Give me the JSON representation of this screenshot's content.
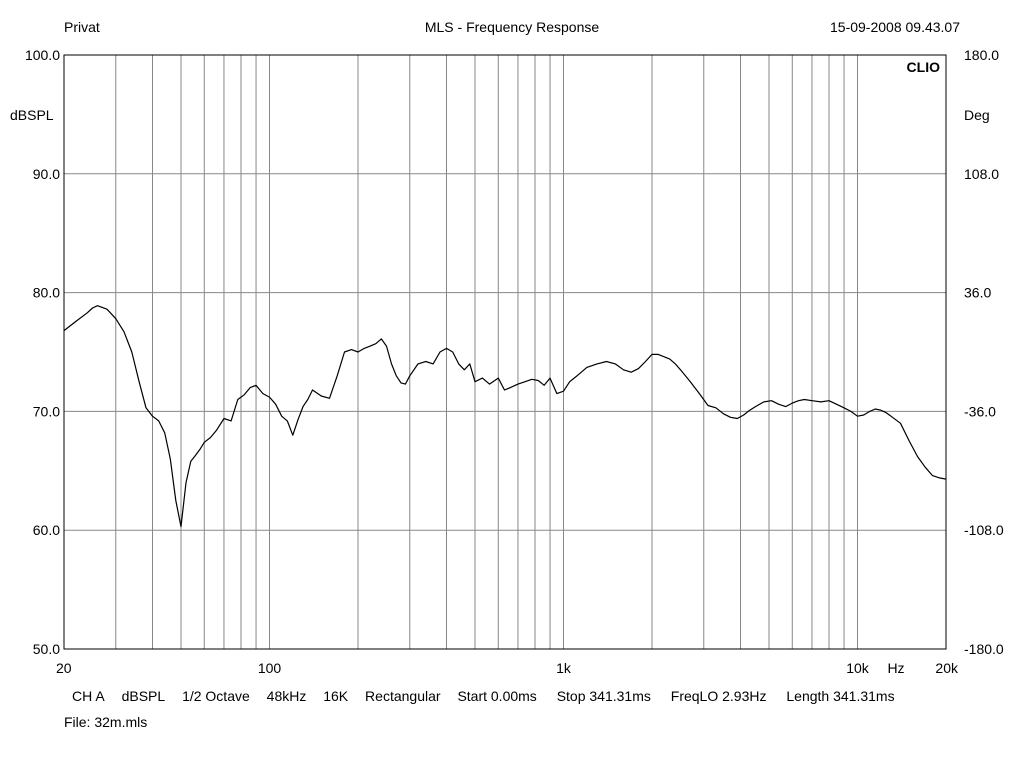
{
  "header": {
    "left": "Privat",
    "center": "MLS - Frequency Response",
    "right": "15-09-2008 09.43.07"
  },
  "footer": {
    "params": [
      "CH A",
      "dBSPL",
      "1/2 Octave",
      "48kHz",
      "16K",
      "Rectangular",
      "Start 0.00ms",
      "Stop 341.31ms",
      "FreqLO 2.93Hz",
      "Length 341.31ms"
    ],
    "file": "File: 32m.mls"
  },
  "chart_data": {
    "type": "line",
    "brand": "CLIO",
    "xscale": "log",
    "xlim": [
      20,
      20000
    ],
    "ylim": [
      50,
      100
    ],
    "y2lim": [
      -180,
      180
    ],
    "ylabel": "dBSPL",
    "y2label": "Deg",
    "xunit": "Hz",
    "grid": true,
    "line_color": "#000000",
    "grid_color": "#888888",
    "x_ticks": [
      {
        "value": 20,
        "label": "20"
      },
      {
        "value": 100,
        "label": "100"
      },
      {
        "value": 1000,
        "label": "1k"
      },
      {
        "value": 10000,
        "label": "10k"
      },
      {
        "value": 20000,
        "label": "20k"
      }
    ],
    "y_ticks": [
      {
        "value": 100,
        "label": "100.0"
      },
      {
        "value": 90,
        "label": "90.0"
      },
      {
        "value": 80,
        "label": "80.0"
      },
      {
        "value": 70,
        "label": "70.0"
      },
      {
        "value": 60,
        "label": "60.0"
      },
      {
        "value": 50,
        "label": "50.0"
      }
    ],
    "y2_ticks": [
      {
        "value": 180,
        "label": "180.0"
      },
      {
        "value": 108,
        "label": "108.0"
      },
      {
        "value": 36,
        "label": "36.0"
      },
      {
        "value": -36,
        "label": "-36.0"
      },
      {
        "value": -108,
        "label": "-108.0"
      },
      {
        "value": -180,
        "label": "-180.0"
      }
    ],
    "series": [
      {
        "x": [
          20,
          22,
          24,
          25,
          26,
          28,
          30,
          32,
          34,
          36,
          38,
          40,
          42,
          44,
          46,
          48,
          50,
          52,
          54,
          56,
          58,
          60,
          63,
          66,
          70,
          74,
          78,
          82,
          86,
          90,
          95,
          100,
          105,
          110,
          115,
          120,
          125,
          130,
          135,
          140,
          150,
          160,
          170,
          180,
          190,
          200,
          210,
          220,
          230,
          240,
          250,
          260,
          270,
          280,
          290,
          300,
          320,
          340,
          360,
          380,
          400,
          420,
          440,
          460,
          480,
          500,
          530,
          560,
          600,
          630,
          660,
          700,
          740,
          780,
          820,
          860,
          900,
          950,
          1000,
          1050,
          1100,
          1150,
          1200,
          1300,
          1400,
          1500,
          1600,
          1700,
          1800,
          1900,
          2000,
          2100,
          2200,
          2300,
          2400,
          2500,
          2700,
          2900,
          3100,
          3300,
          3500,
          3700,
          3900,
          4100,
          4300,
          4500,
          4800,
          5100,
          5400,
          5700,
          6000,
          6300,
          6600,
          7000,
          7500,
          8000,
          8500,
          9000,
          9500,
          10000,
          10500,
          11000,
          11500,
          12000,
          12500,
          13000,
          14000,
          15000,
          16000,
          17000,
          18000,
          19000,
          20000
        ],
        "y": [
          76.8,
          77.6,
          78.3,
          78.7,
          78.9,
          78.6,
          77.8,
          76.7,
          75.0,
          72.5,
          70.3,
          69.6,
          69.2,
          68.2,
          66.0,
          62.5,
          60.3,
          64.0,
          65.8,
          66.3,
          66.8,
          67.4,
          67.8,
          68.4,
          69.4,
          69.2,
          71.0,
          71.4,
          72.0,
          72.2,
          71.5,
          71.2,
          70.6,
          69.6,
          69.2,
          68.0,
          69.3,
          70.4,
          71.0,
          71.8,
          71.3,
          71.1,
          73.0,
          75.0,
          75.2,
          75.0,
          75.3,
          75.5,
          75.7,
          76.1,
          75.5,
          74.0,
          73.0,
          72.4,
          72.3,
          73.0,
          74.0,
          74.2,
          74.0,
          75.0,
          75.3,
          75.0,
          74.0,
          73.5,
          74.0,
          72.5,
          72.8,
          72.3,
          72.8,
          71.8,
          72.0,
          72.3,
          72.5,
          72.7,
          72.6,
          72.2,
          72.8,
          71.5,
          71.7,
          72.5,
          72.9,
          73.3,
          73.7,
          74.0,
          74.2,
          74.0,
          73.5,
          73.3,
          73.6,
          74.2,
          74.8,
          74.8,
          74.6,
          74.4,
          74.0,
          73.5,
          72.5,
          71.5,
          70.5,
          70.3,
          69.8,
          69.5,
          69.4,
          69.7,
          70.1,
          70.4,
          70.8,
          70.9,
          70.6,
          70.4,
          70.7,
          70.9,
          71.0,
          70.9,
          70.8,
          70.9,
          70.6,
          70.3,
          70.0,
          69.6,
          69.7,
          70.0,
          70.2,
          70.1,
          69.9,
          69.6,
          69.0,
          67.5,
          66.2,
          65.3,
          64.6,
          64.4,
          64.3
        ]
      }
    ]
  }
}
